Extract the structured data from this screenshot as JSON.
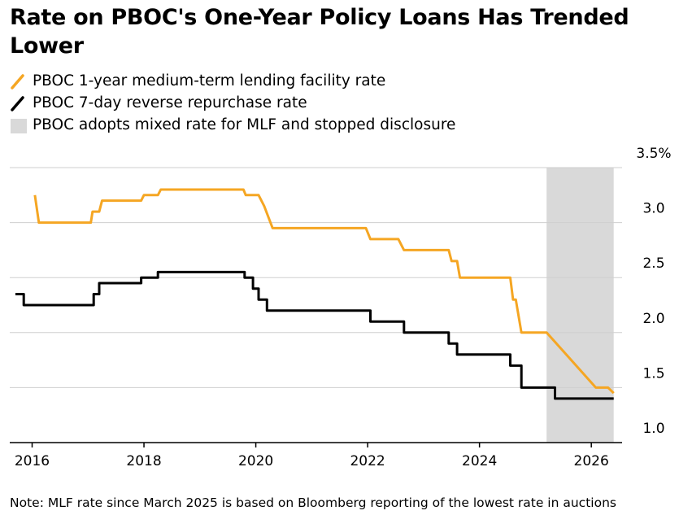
{
  "title": "Rate on PBOC's One-Year Policy Loans Has Trended Lower",
  "legend": [
    {
      "label": "PBOC 1-year medium-term lending facility rate",
      "kind": "line",
      "color": "#f5a623"
    },
    {
      "label": "PBOC 7-day reverse repurchase rate",
      "kind": "line",
      "color": "#000000"
    },
    {
      "label": "PBOC adopts mixed rate for MLF and stopped disclosure",
      "kind": "box",
      "color": "#d9d9d9"
    }
  ],
  "note": "Note: MLF rate since March 2025 is based on Bloomberg reporting of the lowest rate in auctions",
  "chart_data": {
    "type": "line",
    "xlim": [
      2015.6,
      2026.55
    ],
    "ylim": [
      1.0,
      3.5
    ],
    "x_ticks": [
      2016,
      2018,
      2020,
      2022,
      2024,
      2026
    ],
    "x_tick_labels": [
      "2016",
      "2018",
      "2020",
      "2022",
      "2024",
      "2026"
    ],
    "y_ticks": [
      1.0,
      1.5,
      2.0,
      2.5,
      3.0,
      3.5
    ],
    "y_tick_labels": [
      "1.0",
      "1.5",
      "2.0",
      "2.5",
      "3.0",
      "3.5%"
    ],
    "y_axis_side": "right",
    "grid": true,
    "shaded_regions": [
      {
        "x_start": 2025.2,
        "x_end": 2026.4,
        "color": "#d9d9d9"
      }
    ],
    "series": [
      {
        "name": "PBOC 1-year medium-term lending facility rate",
        "color": "#f5a623",
        "step": false,
        "points": [
          [
            2016.05,
            3.25
          ],
          [
            2016.12,
            3.0
          ],
          [
            2017.05,
            3.0
          ],
          [
            2017.08,
            3.1
          ],
          [
            2017.2,
            3.1
          ],
          [
            2017.25,
            3.2
          ],
          [
            2017.95,
            3.2
          ],
          [
            2018.0,
            3.25
          ],
          [
            2018.25,
            3.25
          ],
          [
            2018.3,
            3.3
          ],
          [
            2019.78,
            3.3
          ],
          [
            2019.82,
            3.25
          ],
          [
            2020.05,
            3.25
          ],
          [
            2020.15,
            3.15
          ],
          [
            2020.3,
            2.95
          ],
          [
            2021.97,
            2.95
          ],
          [
            2022.05,
            2.85
          ],
          [
            2022.55,
            2.85
          ],
          [
            2022.65,
            2.75
          ],
          [
            2023.45,
            2.75
          ],
          [
            2023.5,
            2.65
          ],
          [
            2023.6,
            2.65
          ],
          [
            2023.65,
            2.5
          ],
          [
            2024.55,
            2.5
          ],
          [
            2024.6,
            2.3
          ],
          [
            2024.65,
            2.3
          ],
          [
            2024.75,
            2.0
          ],
          [
            2025.2,
            2.0
          ],
          [
            2026.08,
            1.5
          ],
          [
            2026.3,
            1.5
          ],
          [
            2026.4,
            1.45
          ]
        ]
      },
      {
        "name": "PBOC 7-day reverse repurchase rate",
        "color": "#000000",
        "step": true,
        "points": [
          [
            2015.7,
            2.35
          ],
          [
            2015.85,
            2.25
          ],
          [
            2017.1,
            2.35
          ],
          [
            2017.2,
            2.45
          ],
          [
            2017.95,
            2.5
          ],
          [
            2018.25,
            2.55
          ],
          [
            2019.8,
            2.5
          ],
          [
            2019.95,
            2.4
          ],
          [
            2020.05,
            2.3
          ],
          [
            2020.2,
            2.2
          ],
          [
            2022.05,
            2.1
          ],
          [
            2022.65,
            2.0
          ],
          [
            2023.45,
            1.9
          ],
          [
            2023.6,
            1.8
          ],
          [
            2024.55,
            1.7
          ],
          [
            2024.75,
            1.5
          ],
          [
            2025.35,
            1.4
          ],
          [
            2026.4,
            1.4
          ]
        ]
      }
    ]
  }
}
